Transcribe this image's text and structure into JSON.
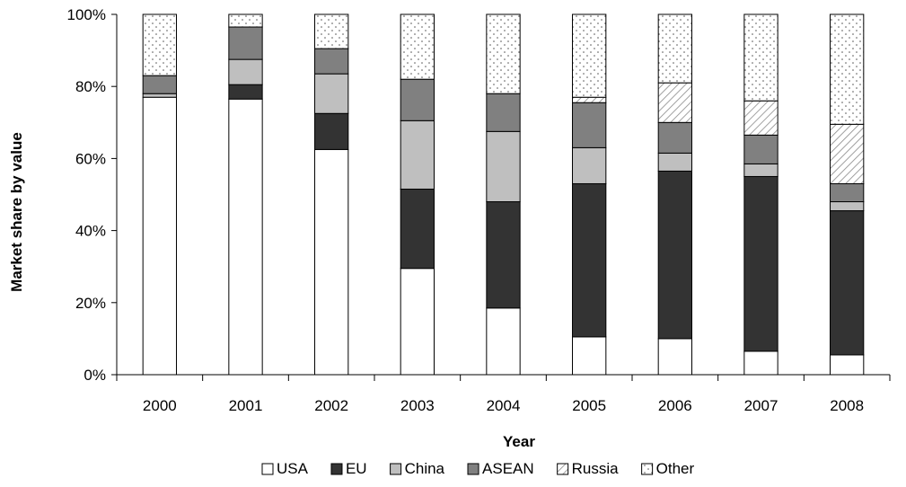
{
  "chart_data": {
    "type": "bar",
    "stacked": true,
    "title": "",
    "xlabel": "Year",
    "ylabel": "Market share by value",
    "ylim": [
      0,
      100
    ],
    "yticks": [
      "0%",
      "20%",
      "40%",
      "60%",
      "80%",
      "100%"
    ],
    "categories": [
      "2000",
      "2001",
      "2002",
      "2003",
      "2004",
      "2005",
      "2006",
      "2007",
      "2008"
    ],
    "legend_position": "bottom",
    "series": [
      {
        "name": "USA",
        "color": "#ffffff",
        "pattern": "none",
        "values": [
          77,
          76.5,
          62.5,
          29.5,
          18.5,
          10.5,
          10,
          6.5,
          5.5
        ]
      },
      {
        "name": "EU",
        "color": "#333333",
        "pattern": "none",
        "values": [
          0,
          4,
          10,
          22,
          29.5,
          42.5,
          46.5,
          48.5,
          40
        ]
      },
      {
        "name": "China",
        "color": "#bfbfbf",
        "pattern": "none",
        "values": [
          1,
          7,
          11,
          19,
          19.5,
          10,
          5,
          3.5,
          2.5
        ]
      },
      {
        "name": "ASEAN",
        "color": "#808080",
        "pattern": "none",
        "values": [
          5,
          9,
          7,
          11.5,
          10.5,
          12.5,
          8.5,
          8,
          5
        ]
      },
      {
        "name": "Russia",
        "color": "#ffffff",
        "pattern": "diagonal",
        "values": [
          0,
          0,
          0,
          0,
          0,
          1.5,
          11,
          9.5,
          16.5
        ]
      },
      {
        "name": "Other",
        "color": "#ffffff",
        "pattern": "dots",
        "values": [
          17,
          3.5,
          9.5,
          18,
          22,
          23,
          19,
          24,
          30.5
        ]
      }
    ]
  }
}
